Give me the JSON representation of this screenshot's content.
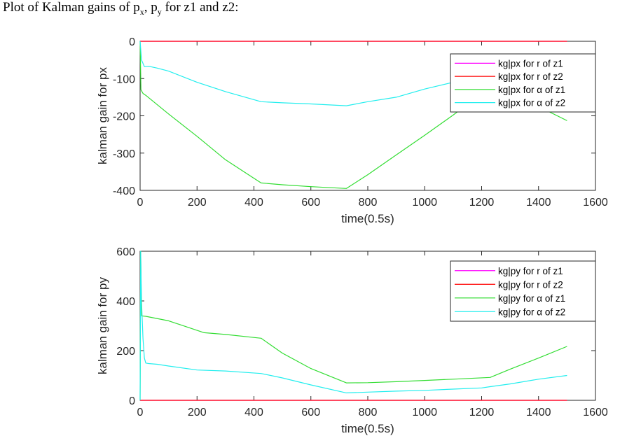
{
  "caption": {
    "prefix": "Plot of Kalman gains of p",
    "sub_x": "x",
    "middle": ", p",
    "sub_y": "y",
    "suffix": " for z1 and z2:"
  },
  "chart_data": [
    {
      "type": "line",
      "xlabel": "time(0.5s)",
      "ylabel": "kalman gain for px",
      "xlim": [
        0,
        1600
      ],
      "ylim": [
        -400,
        0
      ],
      "xticks": [
        0,
        200,
        400,
        600,
        800,
        1000,
        1200,
        1400,
        1600
      ],
      "yticks": [
        0,
        -100,
        -200,
        -300,
        -400
      ],
      "legend_position": "top-right",
      "series": [
        {
          "name": "kg|px for r of z1",
          "color": "#ff00ff",
          "x": [
            0,
            1500
          ],
          "y": [
            0,
            0
          ]
        },
        {
          "name": "kg|px for r of z2",
          "color": "#ff0000",
          "x": [
            0,
            1500
          ],
          "y": [
            0,
            0
          ]
        },
        {
          "name": "kg|px for α of z1",
          "color": "#33dd33",
          "x": [
            0,
            3,
            10,
            20,
            100,
            200,
            300,
            425,
            500,
            600,
            725,
            800,
            900,
            1000,
            1100,
            1200,
            1230,
            1300,
            1400,
            1500
          ],
          "y": [
            0,
            -130,
            -140,
            -145,
            -195,
            -255,
            -318,
            -380,
            -385,
            -390,
            -395,
            -358,
            -305,
            -252,
            -198,
            -140,
            -122,
            -145,
            -175,
            -213
          ]
        },
        {
          "name": "kg|px for α of z2",
          "color": "#22eeee",
          "x": [
            0,
            5,
            15,
            30,
            60,
            100,
            200,
            300,
            425,
            500,
            600,
            725,
            800,
            900,
            1000,
            1100,
            1200,
            1230
          ],
          "y": [
            0,
            -50,
            -68,
            -67,
            -72,
            -80,
            -110,
            -135,
            -162,
            -165,
            -168,
            -173,
            -162,
            -150,
            -128,
            -110,
            -88,
            -82
          ]
        }
      ]
    },
    {
      "type": "line",
      "xlabel": "time(0.5s)",
      "ylabel": "kalman gain for py",
      "xlim": [
        0,
        1600
      ],
      "ylim": [
        0,
        600
      ],
      "xticks": [
        0,
        200,
        400,
        600,
        800,
        1000,
        1200,
        1400,
        1600
      ],
      "yticks": [
        600,
        400,
        200,
        0
      ],
      "legend_position": "top-right",
      "series": [
        {
          "name": "kg|py for r of z1",
          "color": "#ff00ff",
          "x": [
            0,
            1500
          ],
          "y": [
            0,
            0
          ]
        },
        {
          "name": "kg|py for r of z2",
          "color": "#ff0000",
          "x": [
            0,
            1500
          ],
          "y": [
            0,
            0
          ]
        },
        {
          "name": "kg|py for α of z1",
          "color": "#33dd33",
          "x": [
            0,
            2,
            5,
            20,
            100,
            225,
            300,
            425,
            500,
            600,
            725,
            800,
            900,
            1000,
            1100,
            1230,
            1300,
            1400,
            1500
          ],
          "y": [
            0,
            600,
            340,
            338,
            320,
            272,
            265,
            250,
            190,
            128,
            70,
            71,
            75,
            80,
            85,
            92,
            125,
            170,
            217
          ]
        },
        {
          "name": "kg|py for α of z2",
          "color": "#22eeee",
          "x": [
            0,
            2,
            5,
            10,
            15,
            20,
            30,
            60,
            100,
            200,
            300,
            425,
            500,
            600,
            725,
            800,
            900,
            1000,
            1100,
            1200,
            1230,
            1300,
            1400,
            1500
          ],
          "y": [
            0,
            600,
            400,
            250,
            170,
            150,
            148,
            145,
            138,
            122,
            118,
            108,
            90,
            62,
            30,
            33,
            37,
            40,
            45,
            50,
            55,
            66,
            85,
            100
          ]
        }
      ]
    }
  ]
}
